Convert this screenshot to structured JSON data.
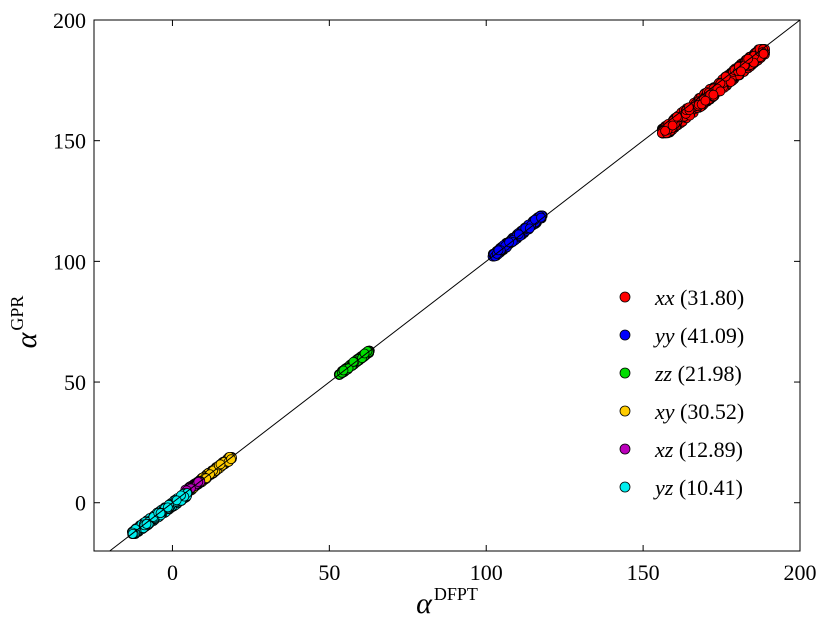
{
  "chart_data": {
    "type": "scatter",
    "title": "",
    "xlabel": "α",
    "xlabel_superscript": "DFPT",
    "ylabel": "α",
    "ylabel_superscript": "GPR",
    "xlim": [
      -25,
      200
    ],
    "ylim": [
      -20,
      200
    ],
    "xticks": [
      0,
      50,
      100,
      150,
      200
    ],
    "yticks": [
      0,
      50,
      100,
      150,
      200
    ],
    "grid": false,
    "legend_position": "right",
    "reference_line": "y = x",
    "series": [
      {
        "name": "xx",
        "label_value": "(31.80)",
        "color": "#ff0000",
        "x_range": [
          156,
          189
        ],
        "y_range": [
          153,
          188
        ]
      },
      {
        "name": "yy",
        "label_value": "(41.09)",
        "color": "#0000ff",
        "x_range": [
          102,
          118
        ],
        "y_range": [
          102,
          119
        ]
      },
      {
        "name": "zz",
        "label_value": "(21.98)",
        "color": "#00dd00",
        "x_range": [
          53,
          63
        ],
        "y_range": [
          53,
          63
        ]
      },
      {
        "name": "xy",
        "label_value": "(30.52)",
        "color": "#ffcc00",
        "x_range": [
          5,
          19
        ],
        "y_range": [
          5,
          19
        ]
      },
      {
        "name": "xz",
        "label_value": "(12.89)",
        "color": "#bb00bb",
        "x_range": [
          4,
          9
        ],
        "y_range": [
          5,
          9
        ]
      },
      {
        "name": "yz",
        "label_value": "(10.41)",
        "color": "#00eeee",
        "x_range": [
          -13,
          5
        ],
        "y_range": [
          -13,
          4
        ]
      }
    ]
  }
}
